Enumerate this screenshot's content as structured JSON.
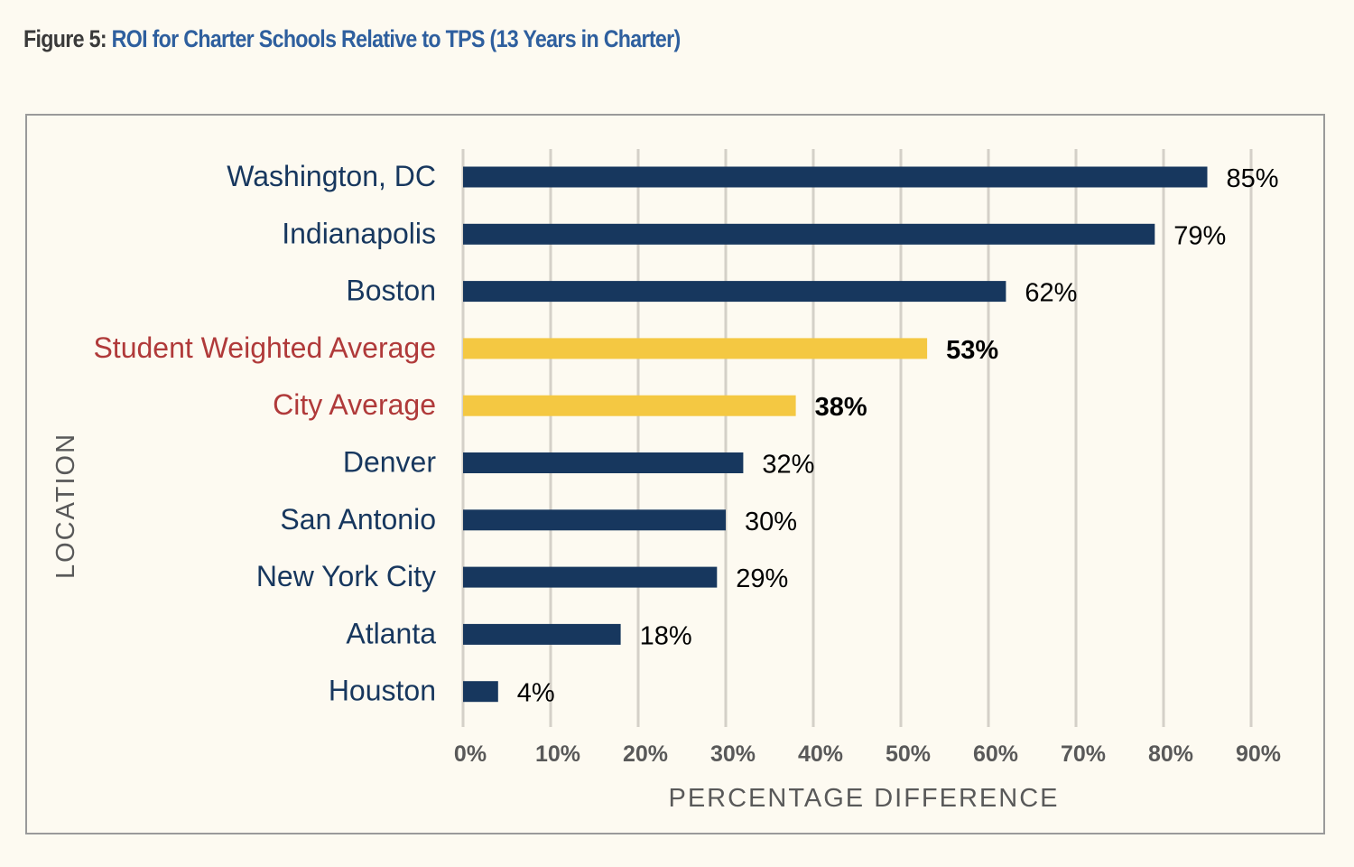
{
  "header": {
    "figure_label": "Figure 5:",
    "figure_title": "ROI for Charter Schools Relative to TPS (13 Years in Charter)"
  },
  "colors": {
    "page_background": "#fdfaf1",
    "figure_label": "#3a3a3a",
    "title_blue": "#2e5f9e",
    "bar_primary": "#17375e",
    "bar_highlight": "#f4c842",
    "label_primary": "#17375e",
    "label_highlight": "#b03a3a",
    "gridline": "#d4d0c8",
    "frame": "#9a9a9a",
    "tick_text": "#595959",
    "value_text": "#000000"
  },
  "chart_data": {
    "type": "bar",
    "orientation": "horizontal",
    "title": "",
    "xlabel": "PERCENTAGE DIFFERENCE",
    "ylabel": "LOCATION",
    "xlim": [
      0,
      90
    ],
    "xticks": [
      0,
      10,
      20,
      30,
      40,
      50,
      60,
      70,
      80,
      90
    ],
    "xtick_labels": [
      "0%",
      "10%",
      "20%",
      "30%",
      "40%",
      "50%",
      "60%",
      "70%",
      "80%",
      "90%"
    ],
    "grid": "vertical",
    "legend": "none",
    "categories": [
      "Washington, DC",
      "Indianapolis",
      "Boston",
      "Student Weighted Average",
      "City Average",
      "Denver",
      "San Antonio",
      "New York City",
      "Atlanta",
      "Houston"
    ],
    "values": [
      85,
      79,
      62,
      53,
      38,
      32,
      30,
      29,
      18,
      4
    ],
    "value_labels": [
      "85%",
      "79%",
      "62%",
      "53%",
      "38%",
      "32%",
      "30%",
      "29%",
      "18%",
      "4%"
    ],
    "highlighted": [
      false,
      false,
      false,
      true,
      true,
      false,
      false,
      false,
      false,
      false
    ]
  }
}
